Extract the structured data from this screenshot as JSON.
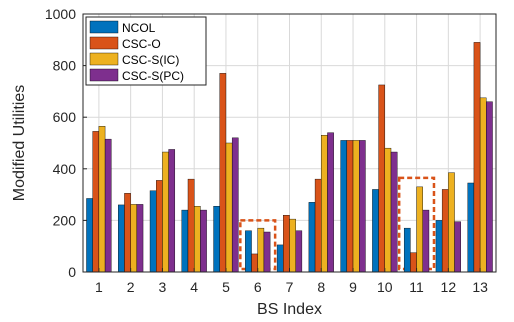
{
  "chart_data": {
    "type": "bar",
    "xlabel": "BS Index",
    "ylabel": "Modified Utilities",
    "categories": [
      "1",
      "2",
      "3",
      "4",
      "5",
      "6",
      "7",
      "8",
      "9",
      "10",
      "11",
      "12",
      "13"
    ],
    "ylim": [
      0,
      1000
    ],
    "yticks": [
      0,
      200,
      400,
      600,
      800,
      1000
    ],
    "grid": true,
    "legend_position": "top-left",
    "series": [
      {
        "name": "NCOL",
        "color": "#0072BD",
        "values": [
          285,
          260,
          315,
          240,
          255,
          160,
          105,
          270,
          510,
          320,
          170,
          200,
          345
        ]
      },
      {
        "name": "CSC-O",
        "color": "#D95319",
        "values": [
          545,
          305,
          355,
          360,
          770,
          70,
          220,
          360,
          510,
          725,
          75,
          320,
          890
        ]
      },
      {
        "name": "CSC-S(IC)",
        "color": "#EDB120",
        "values": [
          565,
          262,
          465,
          255,
          500,
          170,
          205,
          530,
          510,
          480,
          330,
          385,
          675
        ]
      },
      {
        "name": "CSC-S(PC)",
        "color": "#7E2F8E",
        "values": [
          515,
          262,
          475,
          240,
          520,
          155,
          160,
          540,
          510,
          465,
          240,
          195,
          660
        ]
      }
    ],
    "highlight_boxes": [
      {
        "category": "6",
        "ymin": 0,
        "ymax": 200,
        "color": "#D95319"
      },
      {
        "category": "11",
        "ymin": 0,
        "ymax": 365,
        "color": "#D95319"
      }
    ]
  }
}
